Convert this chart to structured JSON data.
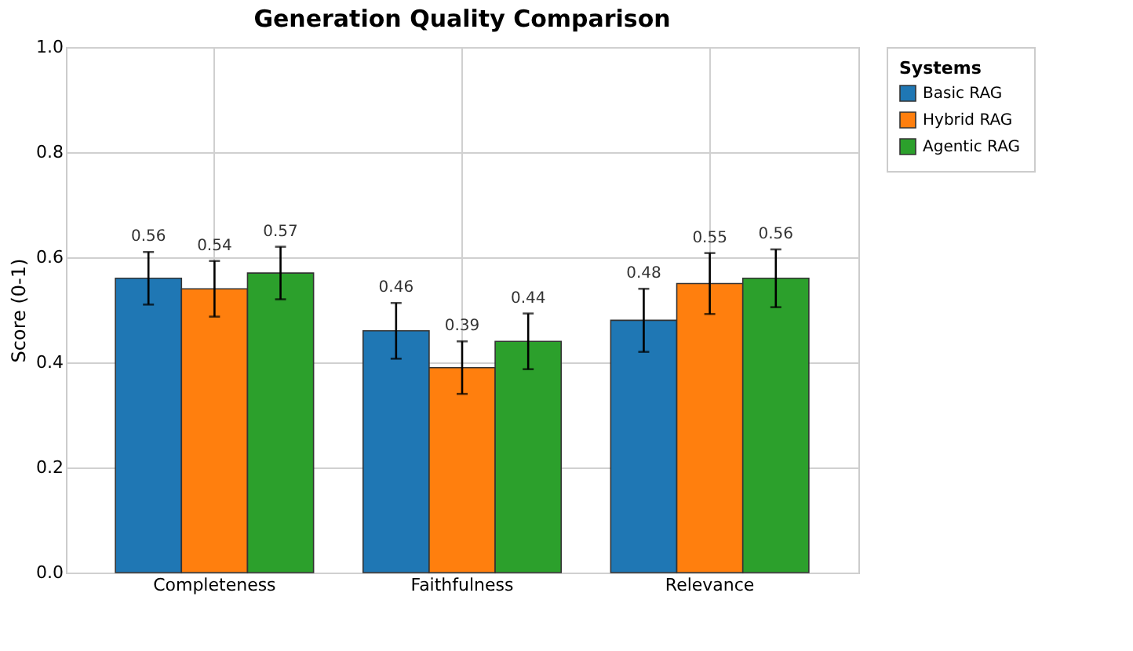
{
  "chart_data": {
    "type": "bar",
    "title": "Generation Quality Comparison",
    "ylabel": "Score (0-1)",
    "legend_title": "Systems",
    "categories": [
      "Completeness",
      "Faithfulness",
      "Relevance"
    ],
    "series": [
      {
        "name": "Basic RAG",
        "color": "#1f77b4",
        "values": [
          0.56,
          0.46,
          0.48
        ],
        "errors": [
          0.05,
          0.053,
          0.06
        ]
      },
      {
        "name": "Hybrid RAG",
        "color": "#ff7f0e",
        "values": [
          0.54,
          0.39,
          0.55
        ],
        "errors": [
          0.053,
          0.05,
          0.058
        ]
      },
      {
        "name": "Agentic RAG",
        "color": "#2ca02c",
        "values": [
          0.57,
          0.44,
          0.56
        ],
        "errors": [
          0.05,
          0.053,
          0.055
        ]
      }
    ],
    "ylim": [
      0,
      1
    ],
    "yticks": [
      {
        "value": 0,
        "label": "0.0"
      },
      {
        "value": 0.2,
        "label": "0.2"
      },
      {
        "value": 0.4,
        "label": "0.4"
      },
      {
        "value": 0.6,
        "label": "0.6"
      },
      {
        "value": 0.8,
        "label": "0.8"
      },
      {
        "value": 1,
        "label": "1.0"
      }
    ],
    "grid": true,
    "legend": "top right",
    "data_labels": true
  }
}
